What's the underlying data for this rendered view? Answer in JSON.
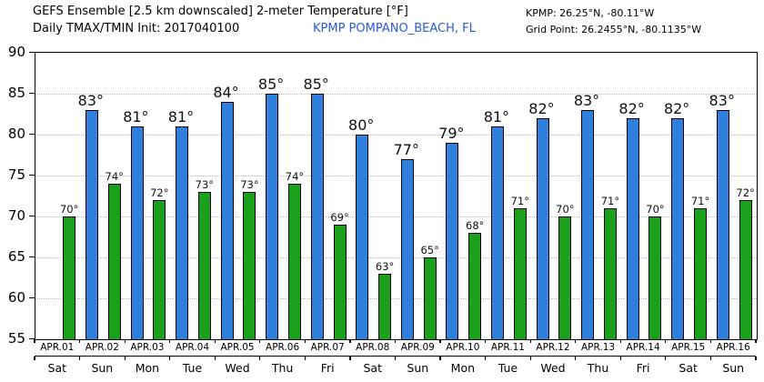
{
  "header": {
    "title": "GEFS Ensemble [2.5 km downscaled] 2-meter Temperature [°F]",
    "init_line": "Daily TMAX/TMIN Init: 2017040100",
    "station": "KPMP POMPANO_BEACH, FL",
    "station_coords": "KPMP: 26.25°N, -80.11°W",
    "grid_point": "Grid Point: 26.2455°N, -80.1135°W"
  },
  "colors": {
    "tmax_bar": "#2E80DC",
    "tmin_bar": "#1AA01A",
    "bar_outline": "#000000",
    "station_text": "#285AE6",
    "gridline": "#B8B8B8",
    "axis": "#000000"
  },
  "chart_data": {
    "type": "bar",
    "title": "GEFS Ensemble [2.5 km downscaled] 2-meter Temperature [°F]",
    "subtitle": "Daily TMAX/TMIN Init: 2017040100",
    "station": "KPMP POMPANO_BEACH, FL",
    "unit": "°",
    "unit_full": "°F",
    "ylim": [
      55,
      90
    ],
    "yticks": [
      55,
      60,
      65,
      70,
      75,
      80,
      85,
      90
    ],
    "grid": "dotted horizontal lines at y ticks",
    "legend": "none",
    "categories": [
      "APR.01",
      "APR.02",
      "APR.03",
      "APR.04",
      "APR.05",
      "APR.06",
      "APR.07",
      "APR.08",
      "APR.09",
      "APR.10",
      "APR.11",
      "APR.12",
      "APR.13",
      "APR.14",
      "APR.15",
      "APR.16"
    ],
    "weekday_labels": [
      "Sat",
      "Sun",
      "Mon",
      "Tue",
      "Wed",
      "Thu",
      "Fri",
      "Sat",
      "Sun",
      "Mon",
      "Tue",
      "Wed",
      "Thu",
      "Fri",
      "Sat",
      "Sun"
    ],
    "series": [
      {
        "name": "TMAX",
        "values": [
          null,
          83,
          81,
          81,
          84,
          85,
          85,
          80,
          77,
          79,
          81,
          82,
          83,
          82,
          82,
          83
        ]
      },
      {
        "name": "TMIN",
        "values": [
          70,
          74,
          72,
          73,
          73,
          74,
          69,
          63,
          65,
          68,
          71,
          70,
          71,
          70,
          71,
          72
        ]
      }
    ]
  }
}
